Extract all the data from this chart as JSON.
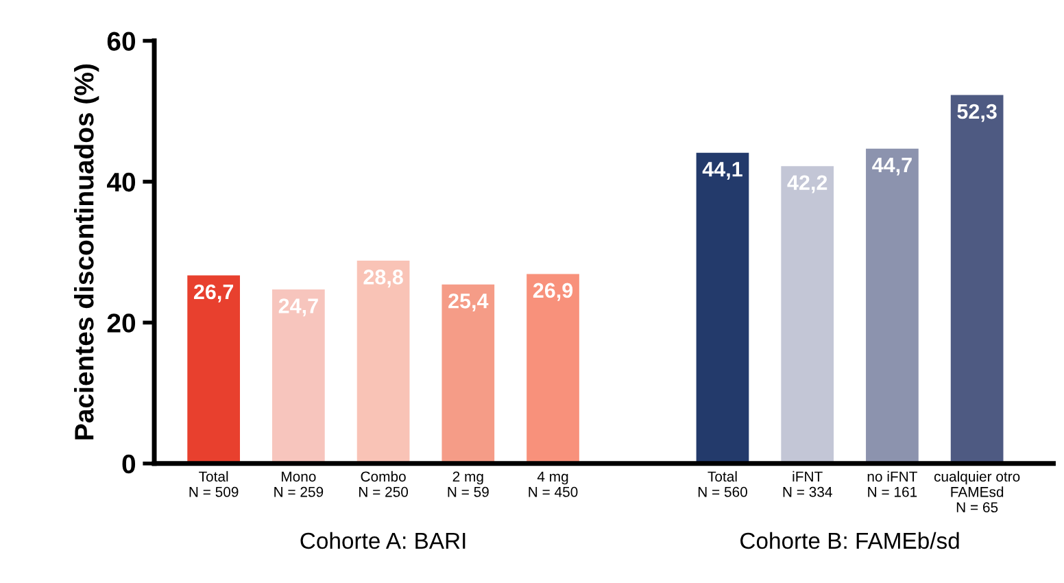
{
  "chart_data": {
    "type": "bar",
    "ylabel": "Pacientes discontinuados (%)",
    "categories": [
      "Total\nN = 509",
      "Mono\nN = 259",
      "Combo\nN = 250",
      "2 mg\nN = 59",
      "4 mg\nN = 450",
      null,
      "Total\nN = 560",
      "iFNT\nN = 334",
      "no iFNT\nN = 161",
      "cualquier otro\nFAMEsd\nN = 65"
    ],
    "values": [
      26.7,
      24.7,
      28.8,
      25.4,
      26.9,
      null,
      44.1,
      42.2,
      44.7,
      52.3
    ],
    "colors": [
      "#e8402e",
      "#f7c5bd",
      "#f9c3b6",
      "#f59c87",
      "#f8917b",
      null,
      "#233a6b",
      "#c3c6d6",
      "#8c93ae",
      "#4e5a82"
    ],
    "value_labels": [
      "26,7",
      "24,7",
      "28,8",
      "25,4",
      "26,9",
      null,
      "44,1",
      "42,2",
      "44,7",
      "52,3"
    ],
    "ylim": [
      0,
      60
    ],
    "yticks": [
      0,
      20,
      40,
      60
    ],
    "grid": false,
    "legend": false,
    "annotations": [
      "Cohorte A: BARI",
      "Cohorte B: FAMEb/sd"
    ]
  }
}
